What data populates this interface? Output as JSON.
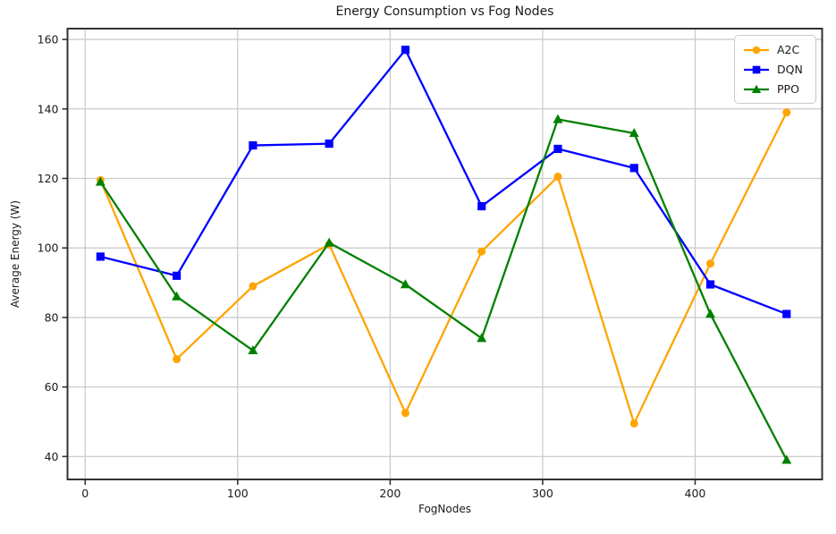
{
  "chart_data": {
    "type": "line",
    "title": "Energy Consumption vs Fog Nodes",
    "xlabel": "FogNodes",
    "ylabel": "Average Energy (W)",
    "x": [
      10,
      60,
      110,
      160,
      210,
      260,
      310,
      360,
      410,
      460
    ],
    "series": [
      {
        "name": "A2C",
        "color": "#FFA500",
        "marker": "circle",
        "values": [
          119.5,
          68,
          89,
          101,
          52.5,
          99,
          120.5,
          49.5,
          95.5,
          139
        ]
      },
      {
        "name": "DQN",
        "color": "#0000FF",
        "marker": "square",
        "values": [
          97.5,
          92,
          129.5,
          130,
          157,
          112,
          128.5,
          123,
          89.5,
          81
        ]
      },
      {
        "name": "PPO",
        "color": "#008000",
        "marker": "triangle",
        "values": [
          119,
          86,
          70.5,
          101.5,
          89.5,
          74,
          137,
          133,
          81,
          39
        ]
      }
    ],
    "xticks": [
      0,
      100,
      200,
      300,
      400
    ],
    "yticks": [
      40,
      60,
      80,
      100,
      120,
      140,
      160
    ],
    "xlim": [
      -11.6,
      483.3
    ],
    "ylim": [
      33.4,
      163.1
    ],
    "grid": true,
    "legend_position": "top-right",
    "grid_color": "#cccccc",
    "spine_color": "#333333",
    "tick_color": "#333333",
    "background": "#ffffff"
  }
}
